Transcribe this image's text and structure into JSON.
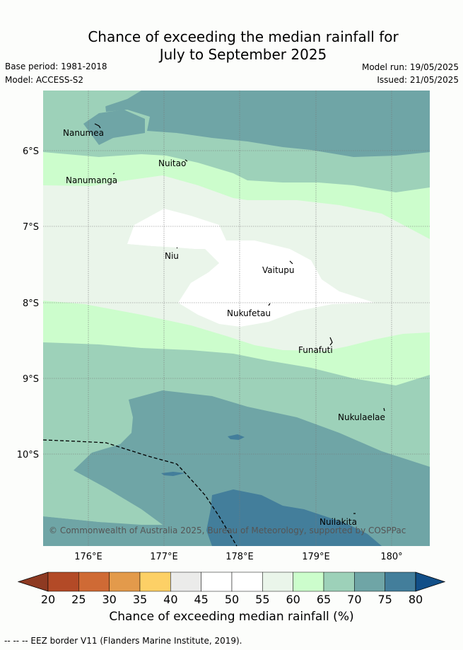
{
  "title_line1": "Chance of exceeding the median rainfall for",
  "title_line2": "July to September 2025",
  "base_period": "Base period: 1981-2018",
  "model": "Model: ACCESS-S2",
  "model_run": "Model run: 19/05/2025",
  "issued": "Issued: 21/05/2025",
  "copyright": "© Commonwealth of Australia 2025, Bureau of Meteorology, supported by COSPPac",
  "lon_labels": [
    "176°E",
    "177°E",
    "178°E",
    "179°E",
    "180°"
  ],
  "lat_labels": [
    "6°S",
    "7°S",
    "8°S",
    "9°S",
    "10°S"
  ],
  "islands": [
    "Nanumea",
    "Nuitao",
    "Nanumanga",
    "Niu",
    "Vaitupu",
    "Nukufetau",
    "Funafuti",
    "Nukulaelae",
    "Nuilakita"
  ],
  "colorbar": {
    "ticks": [
      "20",
      "25",
      "30",
      "35",
      "40",
      "45",
      "50",
      "55",
      "60",
      "65",
      "70",
      "75",
      "80"
    ],
    "label": "Chance of exceeding median rainfall (%)",
    "under_color": "#8e3a22",
    "over_color": "#124f88",
    "colors": [
      "#b34a27",
      "#cf6a35",
      "#e39a4b",
      "#fdd066",
      "#ebebea",
      "#ffffff",
      "#ffffff",
      "#eaf5ea",
      "#ccfdcc",
      "#9dd1b9",
      "#6fa5a6",
      "#437e9b"
    ]
  },
  "colors": {
    "band_65_70": "#9dd1b9",
    "band_70_75": "#6fa5a6",
    "band_75_80": "#437e9b",
    "band_60_65": "#ccfdcc",
    "band_55_60": "#eaf5ea",
    "band_45_55": "#ffffff"
  },
  "footer": "-- -- -- EEZ border V11 (Flanders Marine Institute, 2019)."
}
